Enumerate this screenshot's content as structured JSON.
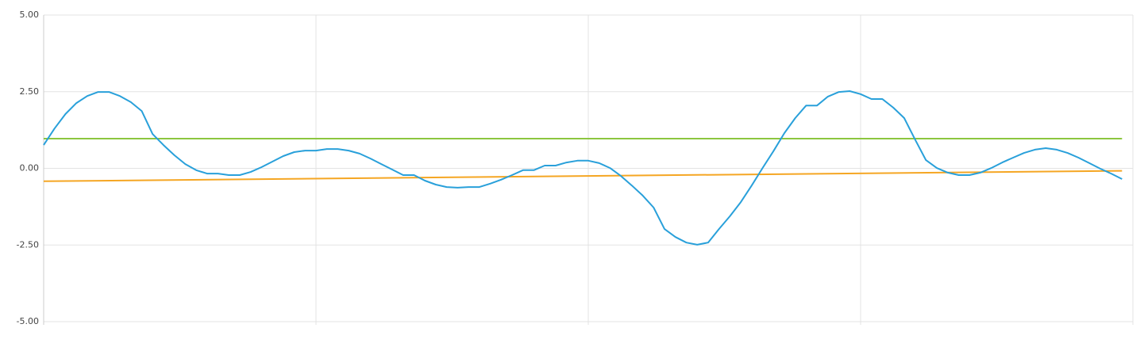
{
  "chart_data": {
    "type": "line",
    "x": [
      0,
      1,
      2,
      3,
      4,
      5,
      6,
      7,
      8,
      9,
      10,
      11,
      12,
      13,
      14,
      15,
      16,
      17,
      18,
      19,
      20,
      21,
      22,
      23,
      24,
      25,
      26,
      27,
      28,
      29,
      30,
      31,
      32,
      33,
      34,
      35,
      36,
      37,
      38,
      39,
      40,
      41,
      42,
      43,
      44,
      45,
      46,
      47,
      48,
      49,
      50,
      51,
      52,
      53,
      54,
      55,
      56,
      57,
      58,
      59,
      60,
      61,
      62,
      63,
      64,
      65,
      66,
      67,
      68,
      69,
      70,
      71,
      72,
      73,
      74,
      75,
      76,
      77,
      78,
      79,
      80,
      81,
      82,
      83,
      84,
      85,
      86,
      87,
      88,
      89,
      90,
      91,
      92,
      93,
      94,
      95,
      96,
      97,
      98,
      99
    ],
    "xlim": [
      0,
      100
    ],
    "xticks": [
      0,
      25,
      50,
      75,
      100
    ],
    "ylim": [
      -5,
      5
    ],
    "yticks": [
      {
        "value": -5,
        "label": "-5.00"
      },
      {
        "value": -2.5,
        "label": "-2.50"
      },
      {
        "value": 0,
        "label": "0.00"
      },
      {
        "value": 2.5,
        "label": "2.50"
      },
      {
        "value": 5,
        "label": "5.00"
      }
    ],
    "grid": true,
    "series": [
      {
        "color": "#8cc63f",
        "x": [
          0,
          99
        ],
        "values": [
          0.97,
          0.97
        ]
      },
      {
        "color": "#f5a623",
        "x": [
          0,
          99
        ],
        "values": [
          -0.42,
          -0.08
        ]
      },
      {
        "color": "#29a0da",
        "values": [
          0.76,
          1.3,
          1.77,
          2.13,
          2.36,
          2.49,
          2.49,
          2.36,
          2.16,
          1.87,
          1.12,
          0.76,
          0.43,
          0.14,
          -0.06,
          -0.17,
          -0.17,
          -0.22,
          -0.22,
          -0.12,
          0.04,
          0.22,
          0.4,
          0.53,
          0.58,
          0.58,
          0.63,
          0.63,
          0.58,
          0.48,
          0.32,
          0.14,
          -0.04,
          -0.22,
          -0.22,
          -0.4,
          -0.53,
          -0.61,
          -0.63,
          -0.61,
          -0.61,
          -0.5,
          -0.37,
          -0.22,
          -0.06,
          -0.06,
          0.09,
          0.09,
          0.19,
          0.25,
          0.25,
          0.17,
          0.01,
          -0.25,
          -0.56,
          -0.89,
          -1.28,
          -1.98,
          -2.24,
          -2.42,
          -2.49,
          -2.42,
          -1.98,
          -1.56,
          -1.1,
          -0.56,
          0.01,
          0.56,
          1.15,
          1.64,
          2.05,
          2.05,
          2.34,
          2.49,
          2.52,
          2.42,
          2.26,
          2.26,
          1.98,
          1.64,
          0.94,
          0.27,
          0.01,
          -0.14,
          -0.22,
          -0.22,
          -0.14,
          0.01,
          0.19,
          0.35,
          0.5,
          0.61,
          0.66,
          0.61,
          0.5,
          0.35,
          0.17,
          -0.01,
          -0.17,
          -0.35
        ]
      }
    ]
  }
}
